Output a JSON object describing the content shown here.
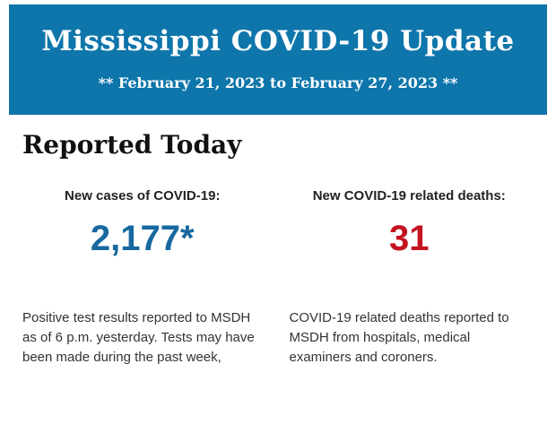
{
  "banner": {
    "title": "Mississippi COVID-19 Update",
    "subtitle": "** February 21, 2023 to February 27, 2023 **",
    "background_color": "#0e76ab",
    "text_color": "#ffffff"
  },
  "section": {
    "heading": "Reported Today"
  },
  "stats": [
    {
      "label": "New cases of COVID-19:",
      "value": "2,177*",
      "value_color": "#17699f",
      "description": "Positive test results reported to MSDH as of 6 p.m. yesterday. Tests may have been made during the past week,"
    },
    {
      "label": "New COVID-19 related deaths:",
      "value": "31",
      "value_color": "#c41421",
      "description": "COVID-19 related deaths reported to MSDH from hospitals, medical examiners and coroners."
    }
  ]
}
